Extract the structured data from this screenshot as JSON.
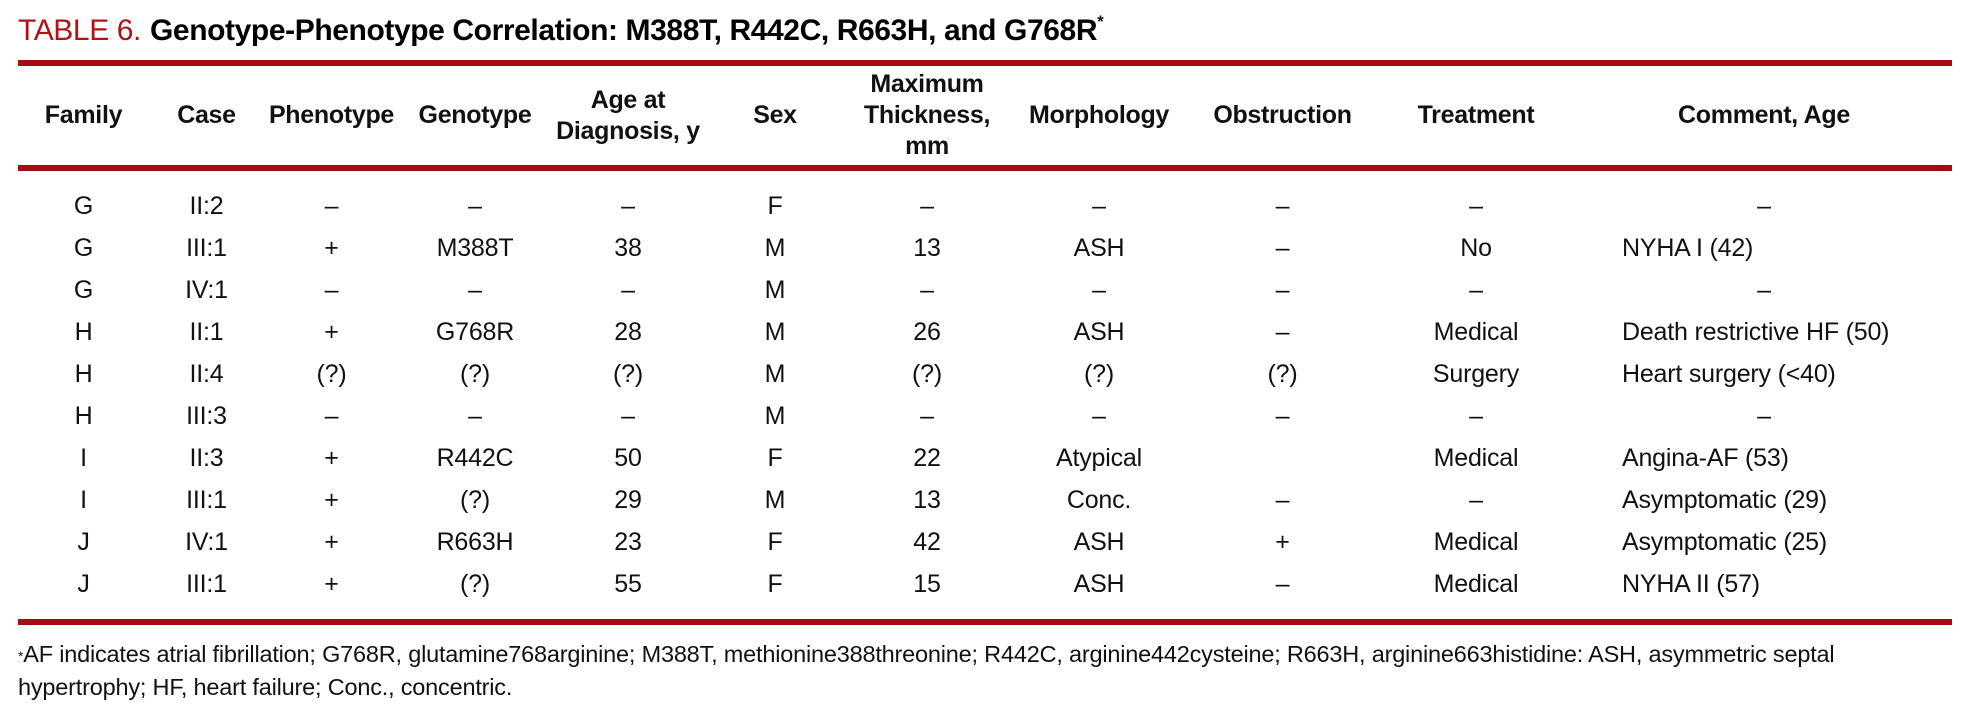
{
  "title": {
    "label": "TABLE 6.",
    "text": "Genotype-Phenotype Correlation: M388T, R442C, R663H, and G768R",
    "superscript": "*"
  },
  "colors": {
    "accent_red": "#b01218",
    "rule_red": "#a30d12"
  },
  "table": {
    "columns": [
      {
        "key": "family",
        "label": "Family"
      },
      {
        "key": "case",
        "label": "Case"
      },
      {
        "key": "phenotype",
        "label": "Phenotype"
      },
      {
        "key": "genotype",
        "label": "Genotype"
      },
      {
        "key": "age",
        "label": "Age at\nDiagnosis, y"
      },
      {
        "key": "sex",
        "label": "Sex"
      },
      {
        "key": "thickness",
        "label": "Maximum\nThickness, mm"
      },
      {
        "key": "morphology",
        "label": "Morphology"
      },
      {
        "key": "obstruction",
        "label": "Obstruction"
      },
      {
        "key": "treatment",
        "label": "Treatment"
      },
      {
        "key": "comment",
        "label": "Comment, Age"
      }
    ],
    "rows": [
      {
        "family": "G",
        "case": "II:2",
        "phenotype": "–",
        "genotype": "–",
        "age": "–",
        "sex": "F",
        "thickness": "–",
        "morphology": "–",
        "obstruction": "–",
        "treatment": "–",
        "comment": "–"
      },
      {
        "family": "G",
        "case": "III:1",
        "phenotype": "+",
        "genotype": "M388T",
        "age": "38",
        "sex": "M",
        "thickness": "13",
        "morphology": "ASH",
        "obstruction": "–",
        "treatment": "No",
        "comment": "NYHA I (42)"
      },
      {
        "family": "G",
        "case": "IV:1",
        "phenotype": "–",
        "genotype": "–",
        "age": "–",
        "sex": "M",
        "thickness": "–",
        "morphology": "–",
        "obstruction": "–",
        "treatment": "–",
        "comment": "–"
      },
      {
        "family": "H",
        "case": "II:1",
        "phenotype": "+",
        "genotype": "G768R",
        "age": "28",
        "sex": "M",
        "thickness": "26",
        "morphology": "ASH",
        "obstruction": "–",
        "treatment": "Medical",
        "comment": "Death restrictive HF (50)"
      },
      {
        "family": "H",
        "case": "II:4",
        "phenotype": "(?)",
        "genotype": "(?)",
        "age": "(?)",
        "sex": "M",
        "thickness": "(?)",
        "morphology": "(?)",
        "obstruction": "(?)",
        "treatment": "Surgery",
        "comment": "Heart surgery (<40)"
      },
      {
        "family": "H",
        "case": "III:3",
        "phenotype": "–",
        "genotype": "–",
        "age": "–",
        "sex": "M",
        "thickness": "–",
        "morphology": "–",
        "obstruction": "–",
        "treatment": "–",
        "comment": "–"
      },
      {
        "family": "I",
        "case": "II:3",
        "phenotype": "+",
        "genotype": "R442C",
        "age": "50",
        "sex": "F",
        "thickness": "22",
        "morphology": "Atypical",
        "obstruction": "",
        "treatment": "Medical",
        "comment": "Angina-AF (53)"
      },
      {
        "family": "I",
        "case": "III:1",
        "phenotype": "+",
        "genotype": "(?)",
        "age": "29",
        "sex": "M",
        "thickness": "13",
        "morphology": "Conc.",
        "obstruction": "–",
        "treatment": "–",
        "comment": "Asymptomatic (29)"
      },
      {
        "family": "J",
        "case": "IV:1",
        "phenotype": "+",
        "genotype": "R663H",
        "age": "23",
        "sex": "F",
        "thickness": "42",
        "morphology": "ASH",
        "obstruction": "+",
        "treatment": "Medical",
        "comment": "Asymptomatic (25)"
      },
      {
        "family": "J",
        "case": "III:1",
        "phenotype": "+",
        "genotype": "(?)",
        "age": "55",
        "sex": "F",
        "thickness": "15",
        "morphology": "ASH",
        "obstruction": "–",
        "treatment": "Medical",
        "comment": "NYHA II (57)"
      }
    ]
  },
  "footnote": {
    "marker": "*",
    "text": "AF indicates atrial fibrillation; G768R, glutamine768arginine; M388T, methionine388threonine; R442C, arginine442cysteine; R663H, arginine663histidine: ASH, asymmetric septal hypertrophy; HF, heart failure; Conc., concentric."
  }
}
